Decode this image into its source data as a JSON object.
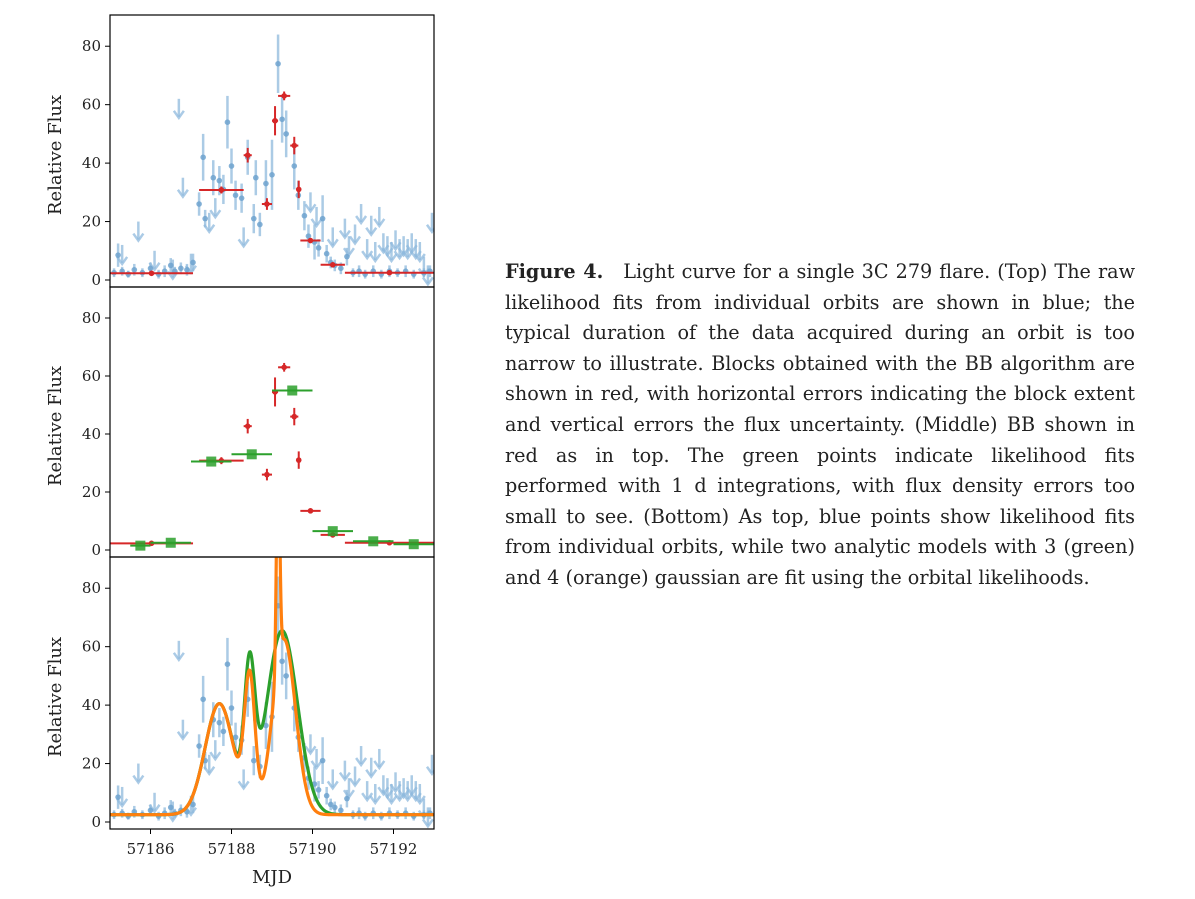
{
  "caption": {
    "label": "Figure 4.",
    "text": "Light curve for a single 3C 279 flare. (Top) The raw likelihood fits from individual orbits are shown in blue; the typical duration of the data acquired during an orbit is too narrow to illustrate. Blocks obtained with the BB algorithm are shown in red, with horizontal errors indicating the block extent and vertical errors the flux uncertainty. (Middle) BB shown in red as in top. The green points indicate likelihood fits performed with 1 d integrations, with flux density errors too small to see. (Bottom) As top, blue points show likelihood fits from individual orbits, while two analytic models with 3 (green) and 4 (orange) gaussian are fit using the orbital likelihoods."
  },
  "colors": {
    "orbit": "#8fbadd",
    "bb": "#d62728",
    "daily": "#2ca02c",
    "model3": "#2ca02c",
    "model4": "#ff7f0e"
  },
  "chart_data": [
    {
      "type": "scatter",
      "panel": "top",
      "ylabel": "Relative Flux",
      "xlim": [
        57185.0,
        57193.0
      ],
      "ylim": [
        0,
        90
      ],
      "yticks": [
        0,
        20,
        40,
        60,
        80
      ],
      "series": [
        {
          "points": [
            [
              57185.1,
              2.5,
              1.5
            ],
            [
              57185.2,
              8.5,
              4
            ],
            [
              57185.3,
              3,
              1.5
            ],
            [
              57185.45,
              2,
              1.2
            ],
            [
              57185.6,
              3.5,
              2
            ],
            [
              57185.8,
              2.5,
              1.5
            ],
            [
              57186.0,
              4,
              2
            ],
            [
              57186.2,
              2,
              1.5
            ],
            [
              57186.35,
              3,
              2
            ],
            [
              57186.5,
              5,
              2.5
            ],
            [
              57186.6,
              3,
              1.5
            ],
            [
              57186.75,
              4,
              2
            ],
            [
              57186.9,
              3.5,
              2
            ],
            [
              57187.05,
              6,
              3
            ],
            [
              57187.2,
              26,
              4
            ],
            [
              57187.3,
              42,
              8
            ],
            [
              57187.35,
              21,
              3
            ],
            [
              57187.55,
              35,
              6
            ],
            [
              57187.7,
              34,
              5
            ],
            [
              57187.8,
              31,
              5
            ],
            [
              57187.9,
              54,
              9
            ],
            [
              57188.0,
              39,
              6
            ],
            [
              57188.1,
              29,
              5
            ],
            [
              57188.25,
              28,
              5
            ],
            [
              57188.4,
              42,
              6
            ],
            [
              57188.55,
              21,
              5
            ],
            [
              57188.6,
              35,
              6
            ],
            [
              57188.7,
              19,
              4
            ],
            [
              57188.85,
              33,
              8
            ],
            [
              57189.0,
              36,
              12
            ],
            [
              57189.15,
              74,
              10
            ],
            [
              57189.25,
              55,
              8
            ],
            [
              57189.35,
              50,
              8
            ],
            [
              57189.55,
              39,
              8
            ],
            [
              57189.65,
              29,
              5
            ],
            [
              57189.8,
              22,
              5
            ],
            [
              57189.9,
              15,
              4
            ],
            [
              57190.05,
              13,
              6
            ],
            [
              57190.15,
              11,
              3
            ],
            [
              57190.25,
              21,
              8
            ],
            [
              57190.35,
              9,
              3
            ],
            [
              57190.45,
              6,
              2
            ],
            [
              57190.55,
              5,
              2
            ],
            [
              57190.7,
              4,
              2
            ],
            [
              57190.85,
              8,
              3
            ],
            [
              57191.0,
              2.5,
              1.5
            ],
            [
              57191.15,
              3,
              2
            ],
            [
              57191.3,
              2,
              1.5
            ],
            [
              57191.5,
              3,
              2
            ],
            [
              57191.7,
              2,
              1.5
            ],
            [
              57191.9,
              3,
              2
            ],
            [
              57192.1,
              2.5,
              1.5
            ],
            [
              57192.3,
              3,
              2
            ],
            [
              57192.5,
              2,
              1.5
            ],
            [
              57192.75,
              2.5,
              1.5
            ],
            [
              57192.9,
              3,
              2
            ]
          ],
          "upper_limits": [
            [
              57185.3,
              12
            ],
            [
              57185.7,
              20
            ],
            [
              57186.1,
              10
            ],
            [
              57186.55,
              7
            ],
            [
              57186.7,
              62
            ],
            [
              57186.8,
              35
            ],
            [
              57187.0,
              9
            ],
            [
              57187.45,
              23
            ],
            [
              57187.6,
              28
            ],
            [
              57188.3,
              18
            ],
            [
              57189.95,
              30
            ],
            [
              57190.1,
              25
            ],
            [
              57190.5,
              18
            ],
            [
              57190.8,
              21
            ],
            [
              57190.9,
              15
            ],
            [
              57191.05,
              19
            ],
            [
              57191.2,
              26
            ],
            [
              57191.35,
              14
            ],
            [
              57191.45,
              22
            ],
            [
              57191.55,
              13
            ],
            [
              57191.65,
              25
            ],
            [
              57191.75,
              16
            ],
            [
              57191.85,
              15
            ],
            [
              57191.95,
              13
            ],
            [
              57192.05,
              17
            ],
            [
              57192.15,
              14
            ],
            [
              57192.25,
              15
            ],
            [
              57192.35,
              14
            ],
            [
              57192.45,
              16
            ],
            [
              57192.55,
              14
            ],
            [
              57192.65,
              13
            ],
            [
              57192.75,
              8
            ],
            [
              57192.85,
              5
            ],
            [
              57192.95,
              23
            ]
          ]
        },
        {
          "blocks": [
            [
              57185.0,
              57187.05,
              2.3,
              0.5
            ],
            [
              57187.2,
              57188.3,
              30.8,
              1.2
            ],
            [
              57188.3,
              57188.5,
              42.7,
              2.5
            ],
            [
              57188.75,
              57189.0,
              26,
              2
            ],
            [
              57189.0,
              57189.15,
              54.5,
              5
            ],
            [
              57189.15,
              57189.45,
              63,
              1.5
            ],
            [
              57189.45,
              57189.65,
              46,
              3
            ],
            [
              57189.62,
              57189.7,
              31,
              3
            ],
            [
              57189.7,
              57190.2,
              13.5,
              0.8
            ],
            [
              57190.2,
              57190.8,
              5.2,
              0.5
            ],
            [
              57190.8,
              57193.0,
              2.5,
              0.3
            ]
          ]
        }
      ]
    },
    {
      "type": "scatter",
      "panel": "middle",
      "ylabel": "Relative Flux",
      "xlim": [
        57185.0,
        57193.0
      ],
      "ylim": [
        0,
        90
      ],
      "yticks": [
        0,
        20,
        40,
        60,
        80
      ],
      "series": [
        {
          "blocks": [
            [
              57185.0,
              57187.05,
              2.3,
              0.5
            ],
            [
              57187.2,
              57188.3,
              30.8,
              1.2
            ],
            [
              57188.3,
              57188.5,
              42.7,
              2.5
            ],
            [
              57188.75,
              57189.0,
              26,
              2
            ],
            [
              57189.0,
              57189.15,
              54.5,
              5
            ],
            [
              57189.15,
              57189.45,
              63,
              1.5
            ],
            [
              57189.45,
              57189.65,
              46,
              3
            ],
            [
              57189.62,
              57189.7,
              31,
              3
            ],
            [
              57189.7,
              57190.2,
              13.5,
              0.8
            ],
            [
              57190.2,
              57190.8,
              5.2,
              0.5
            ],
            [
              57190.8,
              57193.0,
              2.5,
              0.3
            ]
          ]
        },
        {
          "points": [
            [
              57185.5,
              57186.0,
              1.5
            ],
            [
              57186.0,
              57187.0,
              2.5
            ],
            [
              57187.0,
              57188.0,
              30.5
            ],
            [
              57188.0,
              57189.0,
              33
            ],
            [
              57189.0,
              57190.0,
              55
            ],
            [
              57190.0,
              57191.0,
              6.5
            ],
            [
              57191.0,
              57192.0,
              3
            ],
            [
              57192.0,
              57193.0,
              2
            ]
          ]
        }
      ]
    },
    {
      "type": "line",
      "panel": "bottom",
      "xlabel": "MJD",
      "ylabel": "Relative Flux",
      "xlim": [
        57185.0,
        57193.0
      ],
      "ylim": [
        0,
        90
      ],
      "yticks": [
        0,
        20,
        40,
        60,
        80
      ],
      "xticks": [
        57186,
        57188,
        57190,
        57192
      ],
      "series": [
        {
          "baseline": 2.5,
          "gaussians": [
            [
              57187.7,
              38,
              0.35
            ],
            [
              57188.45,
              45,
              0.13
            ],
            [
              57189.25,
              63,
              0.38
            ]
          ]
        },
        {
          "baseline": 2.5,
          "gaussians": [
            [
              57187.7,
              38,
              0.35
            ],
            [
              57188.45,
              45,
              0.13
            ],
            [
              57189.15,
              75,
              0.04
            ],
            [
              57189.3,
              60,
              0.28
            ]
          ]
        }
      ]
    }
  ]
}
